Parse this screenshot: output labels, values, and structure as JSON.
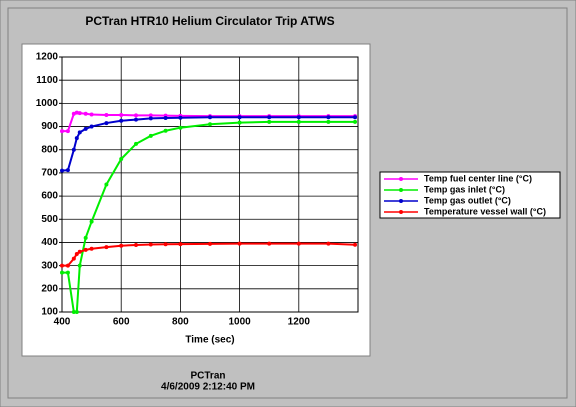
{
  "chart_data": {
    "type": "line",
    "title": "PCTran HTR10 Helium Circulator Trip ATWS",
    "xlabel": "Time (sec)",
    "annotations": [
      "PCTran",
      "4/6/2009 2:12:40 PM"
    ],
    "x": [
      400,
      420,
      440,
      450,
      460,
      480,
      500,
      550,
      600,
      650,
      700,
      750,
      800,
      900,
      1000,
      1100,
      1200,
      1300,
      1390
    ],
    "series": [
      {
        "name": "Temp fuel center line (°C)",
        "color": "#ff00ff",
        "values": [
          880,
          880,
          955,
          960,
          958,
          955,
          952,
          950,
          950,
          948,
          948,
          947,
          946,
          945,
          945,
          945,
          945,
          945,
          945
        ]
      },
      {
        "name": "Temp gas inlet (°C)",
        "color": "#00ee00",
        "values": [
          270,
          270,
          100,
          100,
          300,
          420,
          490,
          650,
          760,
          825,
          860,
          882,
          895,
          910,
          917,
          920,
          920,
          920,
          920
        ]
      },
      {
        "name": "Temp gas outlet (°C)",
        "color": "#0000cc",
        "values": [
          710,
          712,
          800,
          850,
          875,
          890,
          900,
          915,
          925,
          930,
          935,
          937,
          938,
          940,
          940,
          940,
          940,
          940,
          940
        ]
      },
      {
        "name": "Temperature vessel wall (°C)",
        "color": "#ff0000",
        "values": [
          300,
          300,
          330,
          350,
          360,
          368,
          373,
          380,
          386,
          389,
          391,
          392,
          393,
          394,
          395,
          395,
          395,
          395,
          390
        ]
      }
    ],
    "xlim": [
      400,
      1400
    ],
    "xticks": [
      400,
      600,
      800,
      1000,
      1200
    ],
    "ylim": [
      100,
      1200
    ],
    "yticks": [
      100,
      200,
      300,
      400,
      500,
      600,
      700,
      800,
      900,
      1000,
      1100,
      1200
    ],
    "grid": true,
    "legend": "right"
  }
}
